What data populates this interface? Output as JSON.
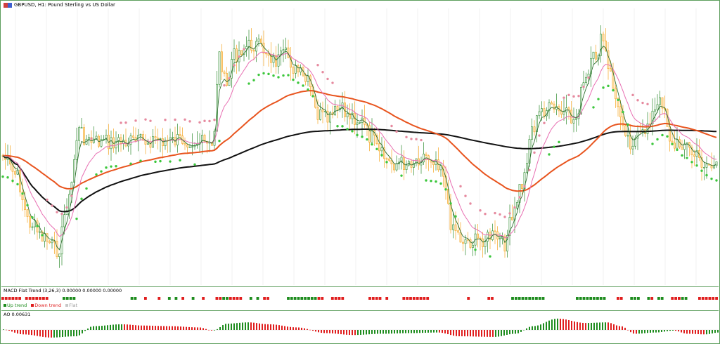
{
  "main": {
    "symbol_title": "GBPUSD, H1: Pound Sterling vs US Dollar",
    "flag_icon": "gbp-usd-flag-icon",
    "colors": {
      "up_candle": "#2e8b2e",
      "down_candle": "#f5a623",
      "sma200": "#111111",
      "ema_orange": "#e8541e",
      "ma_pink": "#e86fb2",
      "ma_green": "#2e6f2e",
      "sar_up": "#3cc73c",
      "sar_down": "#e68a9f"
    }
  },
  "macd_flat_trend": {
    "label": "MACD Flat Trend (3,26,3) 0.00000 0.00000 0.00000",
    "legend": [
      {
        "label": "Up trend",
        "color": "#1e8c1e"
      },
      {
        "label": "Down trend",
        "color": "#e01e1e"
      },
      {
        "label": "Flat",
        "color": "#c8c8c8"
      }
    ]
  },
  "ao": {
    "label": "AO 0.00631",
    "colors": {
      "up": "#1e8c1e",
      "down": "#e01e1e"
    }
  },
  "chart_data": {
    "type": "candlestick",
    "symbol": "GBPUSD",
    "timeframe": "H1",
    "anchors_close": [
      [
        0,
        0.55
      ],
      [
        20,
        0.62
      ],
      [
        40,
        0.8
      ],
      [
        60,
        0.86
      ],
      [
        80,
        0.9
      ],
      [
        95,
        0.72
      ],
      [
        110,
        0.46
      ],
      [
        125,
        0.5
      ],
      [
        140,
        0.5
      ],
      [
        160,
        0.5
      ],
      [
        180,
        0.5
      ],
      [
        200,
        0.5
      ],
      [
        220,
        0.49
      ],
      [
        240,
        0.5
      ],
      [
        260,
        0.49
      ],
      [
        280,
        0.5
      ],
      [
        300,
        0.52
      ],
      [
        310,
        0.18
      ],
      [
        320,
        0.3
      ],
      [
        330,
        0.18
      ],
      [
        345,
        0.15
      ],
      [
        360,
        0.14
      ],
      [
        375,
        0.16
      ],
      [
        390,
        0.2
      ],
      [
        405,
        0.18
      ],
      [
        420,
        0.24
      ],
      [
        435,
        0.28
      ],
      [
        450,
        0.4
      ],
      [
        465,
        0.42
      ],
      [
        480,
        0.38
      ],
      [
        495,
        0.4
      ],
      [
        510,
        0.42
      ],
      [
        525,
        0.48
      ],
      [
        540,
        0.55
      ],
      [
        555,
        0.58
      ],
      [
        570,
        0.58
      ],
      [
        585,
        0.57
      ],
      [
        600,
        0.55
      ],
      [
        615,
        0.56
      ],
      [
        625,
        0.58
      ],
      [
        640,
        0.8
      ],
      [
        655,
        0.86
      ],
      [
        670,
        0.87
      ],
      [
        685,
        0.86
      ],
      [
        700,
        0.85
      ],
      [
        715,
        0.88
      ],
      [
        725,
        0.8
      ],
      [
        740,
        0.66
      ],
      [
        755,
        0.45
      ],
      [
        770,
        0.38
      ],
      [
        785,
        0.38
      ],
      [
        800,
        0.4
      ],
      [
        815,
        0.42
      ],
      [
        830,
        0.28
      ],
      [
        845,
        0.18
      ],
      [
        855,
        0.12
      ],
      [
        865,
        0.25
      ],
      [
        880,
        0.4
      ],
      [
        895,
        0.5
      ],
      [
        910,
        0.48
      ],
      [
        925,
        0.4
      ],
      [
        940,
        0.35
      ],
      [
        955,
        0.52
      ],
      [
        970,
        0.5
      ],
      [
        985,
        0.55
      ],
      [
        1000,
        0.58
      ],
      [
        1020,
        0.6
      ]
    ],
    "macd_trend_states": [
      -1,
      -1,
      -1,
      -1,
      -1,
      -1,
      0,
      -1,
      -1,
      -1,
      -1,
      -1,
      -1,
      -1,
      0,
      0,
      0,
      0,
      1,
      1,
      1,
      1,
      0,
      0,
      0,
      0,
      0,
      0,
      0,
      0,
      0,
      0,
      0,
      0,
      0,
      0,
      0,
      0,
      1,
      1,
      0,
      0,
      -1,
      0,
      0,
      0,
      -1,
      0,
      0,
      1,
      0,
      1,
      0,
      -1,
      0,
      0,
      1,
      0,
      0,
      -1,
      0,
      0,
      0,
      -1,
      -1,
      1,
      1,
      -1,
      -1,
      -1,
      -1,
      0,
      0,
      1,
      0,
      1,
      0,
      -1,
      -1,
      0,
      0,
      0,
      0,
      0,
      1,
      1,
      1,
      1,
      1,
      1,
      1,
      1,
      1,
      -1,
      -1,
      0,
      0,
      -1,
      -1,
      -1,
      -1,
      0,
      0,
      0,
      0,
      0,
      0,
      0,
      -1,
      -1,
      -1,
      -1,
      0,
      -1,
      0,
      0,
      0,
      0,
      -1,
      -1,
      -1,
      -1,
      -1,
      -1,
      -1,
      -1,
      0,
      0,
      0,
      0,
      0,
      0,
      0,
      0,
      0,
      0,
      0,
      -1,
      0,
      0,
      0,
      0,
      0,
      -1,
      -1,
      0,
      0,
      0,
      0,
      0,
      1,
      1,
      1,
      1,
      1,
      1,
      1,
      1,
      1,
      1,
      0,
      0,
      0,
      0,
      0,
      0,
      0,
      0,
      0,
      1,
      1,
      1,
      1,
      1,
      1,
      1,
      1,
      1,
      0,
      0,
      0,
      -1,
      -1,
      0,
      0,
      1,
      1,
      1,
      0,
      0,
      1,
      -1,
      0,
      1,
      1,
      0,
      0,
      -1,
      -1,
      -1,
      1,
      1,
      0,
      0,
      0,
      -1,
      -1,
      -1,
      -1,
      -1,
      -1
    ],
    "ao_anchors": [
      [
        0,
        0.05
      ],
      [
        30,
        -0.35
      ],
      [
        70,
        -0.6
      ],
      [
        105,
        -0.5
      ],
      [
        130,
        0.3
      ],
      [
        170,
        0.45
      ],
      [
        200,
        0.35
      ],
      [
        240,
        0.3
      ],
      [
        280,
        0.2
      ],
      [
        300,
        -0.05
      ],
      [
        320,
        0.5
      ],
      [
        350,
        0.6
      ],
      [
        380,
        0.45
      ],
      [
        420,
        0.2
      ],
      [
        460,
        -0.25
      ],
      [
        500,
        -0.4
      ],
      [
        540,
        -0.3
      ],
      [
        580,
        -0.25
      ],
      [
        620,
        -0.2
      ],
      [
        650,
        -0.5
      ],
      [
        700,
        -0.55
      ],
      [
        730,
        -0.3
      ],
      [
        755,
        0.3
      ],
      [
        790,
        0.9
      ],
      [
        830,
        0.55
      ],
      [
        860,
        0.6
      ],
      [
        880,
        0.3
      ],
      [
        900,
        -0.3
      ],
      [
        930,
        -0.2
      ],
      [
        955,
        -0.05
      ],
      [
        975,
        -0.3
      ],
      [
        1000,
        -0.35
      ],
      [
        1020,
        -0.2
      ]
    ]
  }
}
